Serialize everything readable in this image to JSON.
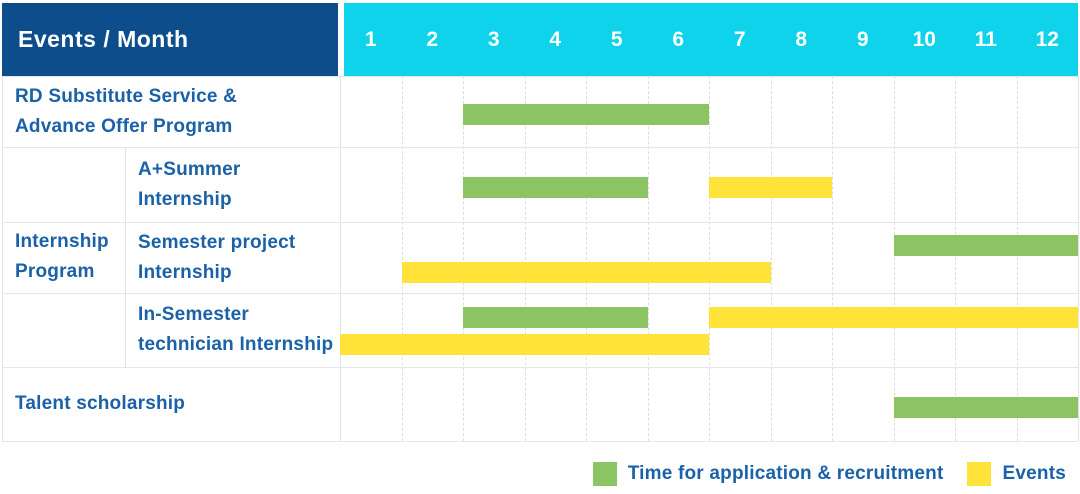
{
  "header": {
    "corner_label": "Events / Month"
  },
  "months": [
    "1",
    "2",
    "3",
    "4",
    "5",
    "6",
    "7",
    "8",
    "9",
    "10",
    "11",
    "12"
  ],
  "legend": [
    {
      "key": "application",
      "label": "Time for application & recruitment"
    },
    {
      "key": "event",
      "label": "Events"
    }
  ],
  "colors": {
    "corner_bg": "#0D4D8C",
    "month_bg": "#0FD2EB",
    "application_green": "#8CC464",
    "event_yellow": "#FFE339",
    "label_text": "#1A61A8",
    "header_text": "#FFFFFF"
  },
  "chart_data": {
    "type": "bar",
    "variant": "gantt",
    "title": "",
    "x_axis": {
      "label": "Month",
      "ticks": [
        1,
        2,
        3,
        4,
        5,
        6,
        7,
        8,
        9,
        10,
        11,
        12
      ],
      "range": [
        1,
        12
      ]
    },
    "legend_entries": [
      "Time for application & recruitment",
      "Events"
    ],
    "rows": [
      {
        "group": null,
        "label": "RD Substitute Service & Advance Offer Program",
        "label_lines": [
          "RD Substitute Service &",
          "Advance Offer Program"
        ],
        "bar_lines": 1,
        "bars": [
          {
            "series": "application",
            "start_month": 3,
            "end_month": 6,
            "line": 0
          }
        ]
      },
      {
        "group": "Internship Program",
        "label": "A+Summer Internship",
        "label_lines": [
          "A+Summer",
          "Internship"
        ],
        "bar_lines": 1,
        "bars": [
          {
            "series": "application",
            "start_month": 3,
            "end_month": 5,
            "line": 0
          },
          {
            "series": "event",
            "start_month": 7,
            "end_month": 8,
            "line": 0
          }
        ]
      },
      {
        "group": "Internship Program",
        "label": "Semester project Internship",
        "label_lines": [
          "Semester project",
          "Internship"
        ],
        "bar_lines": 2,
        "bars": [
          {
            "series": "application",
            "start_month": 10,
            "end_month": 12,
            "line": 0
          },
          {
            "series": "event",
            "start_month": 2,
            "end_month": 7,
            "line": 1
          }
        ]
      },
      {
        "group": "Internship Program",
        "label": "In-Semester technician Internship",
        "label_lines": [
          "In-Semester",
          "technician Internship"
        ],
        "bar_lines": 2,
        "bars": [
          {
            "series": "application",
            "start_month": 3,
            "end_month": 5,
            "line": 0
          },
          {
            "series": "event",
            "start_month": 7,
            "end_month": 12,
            "line": 0
          },
          {
            "series": "event",
            "start_month": 1,
            "end_month": 6,
            "line": 1
          }
        ]
      },
      {
        "group": null,
        "label": "Talent scholarship",
        "label_lines": [
          "Talent scholarship"
        ],
        "bar_lines": 1,
        "bars": [
          {
            "series": "application",
            "start_month": 10,
            "end_month": 12,
            "line": 0
          }
        ]
      }
    ]
  }
}
